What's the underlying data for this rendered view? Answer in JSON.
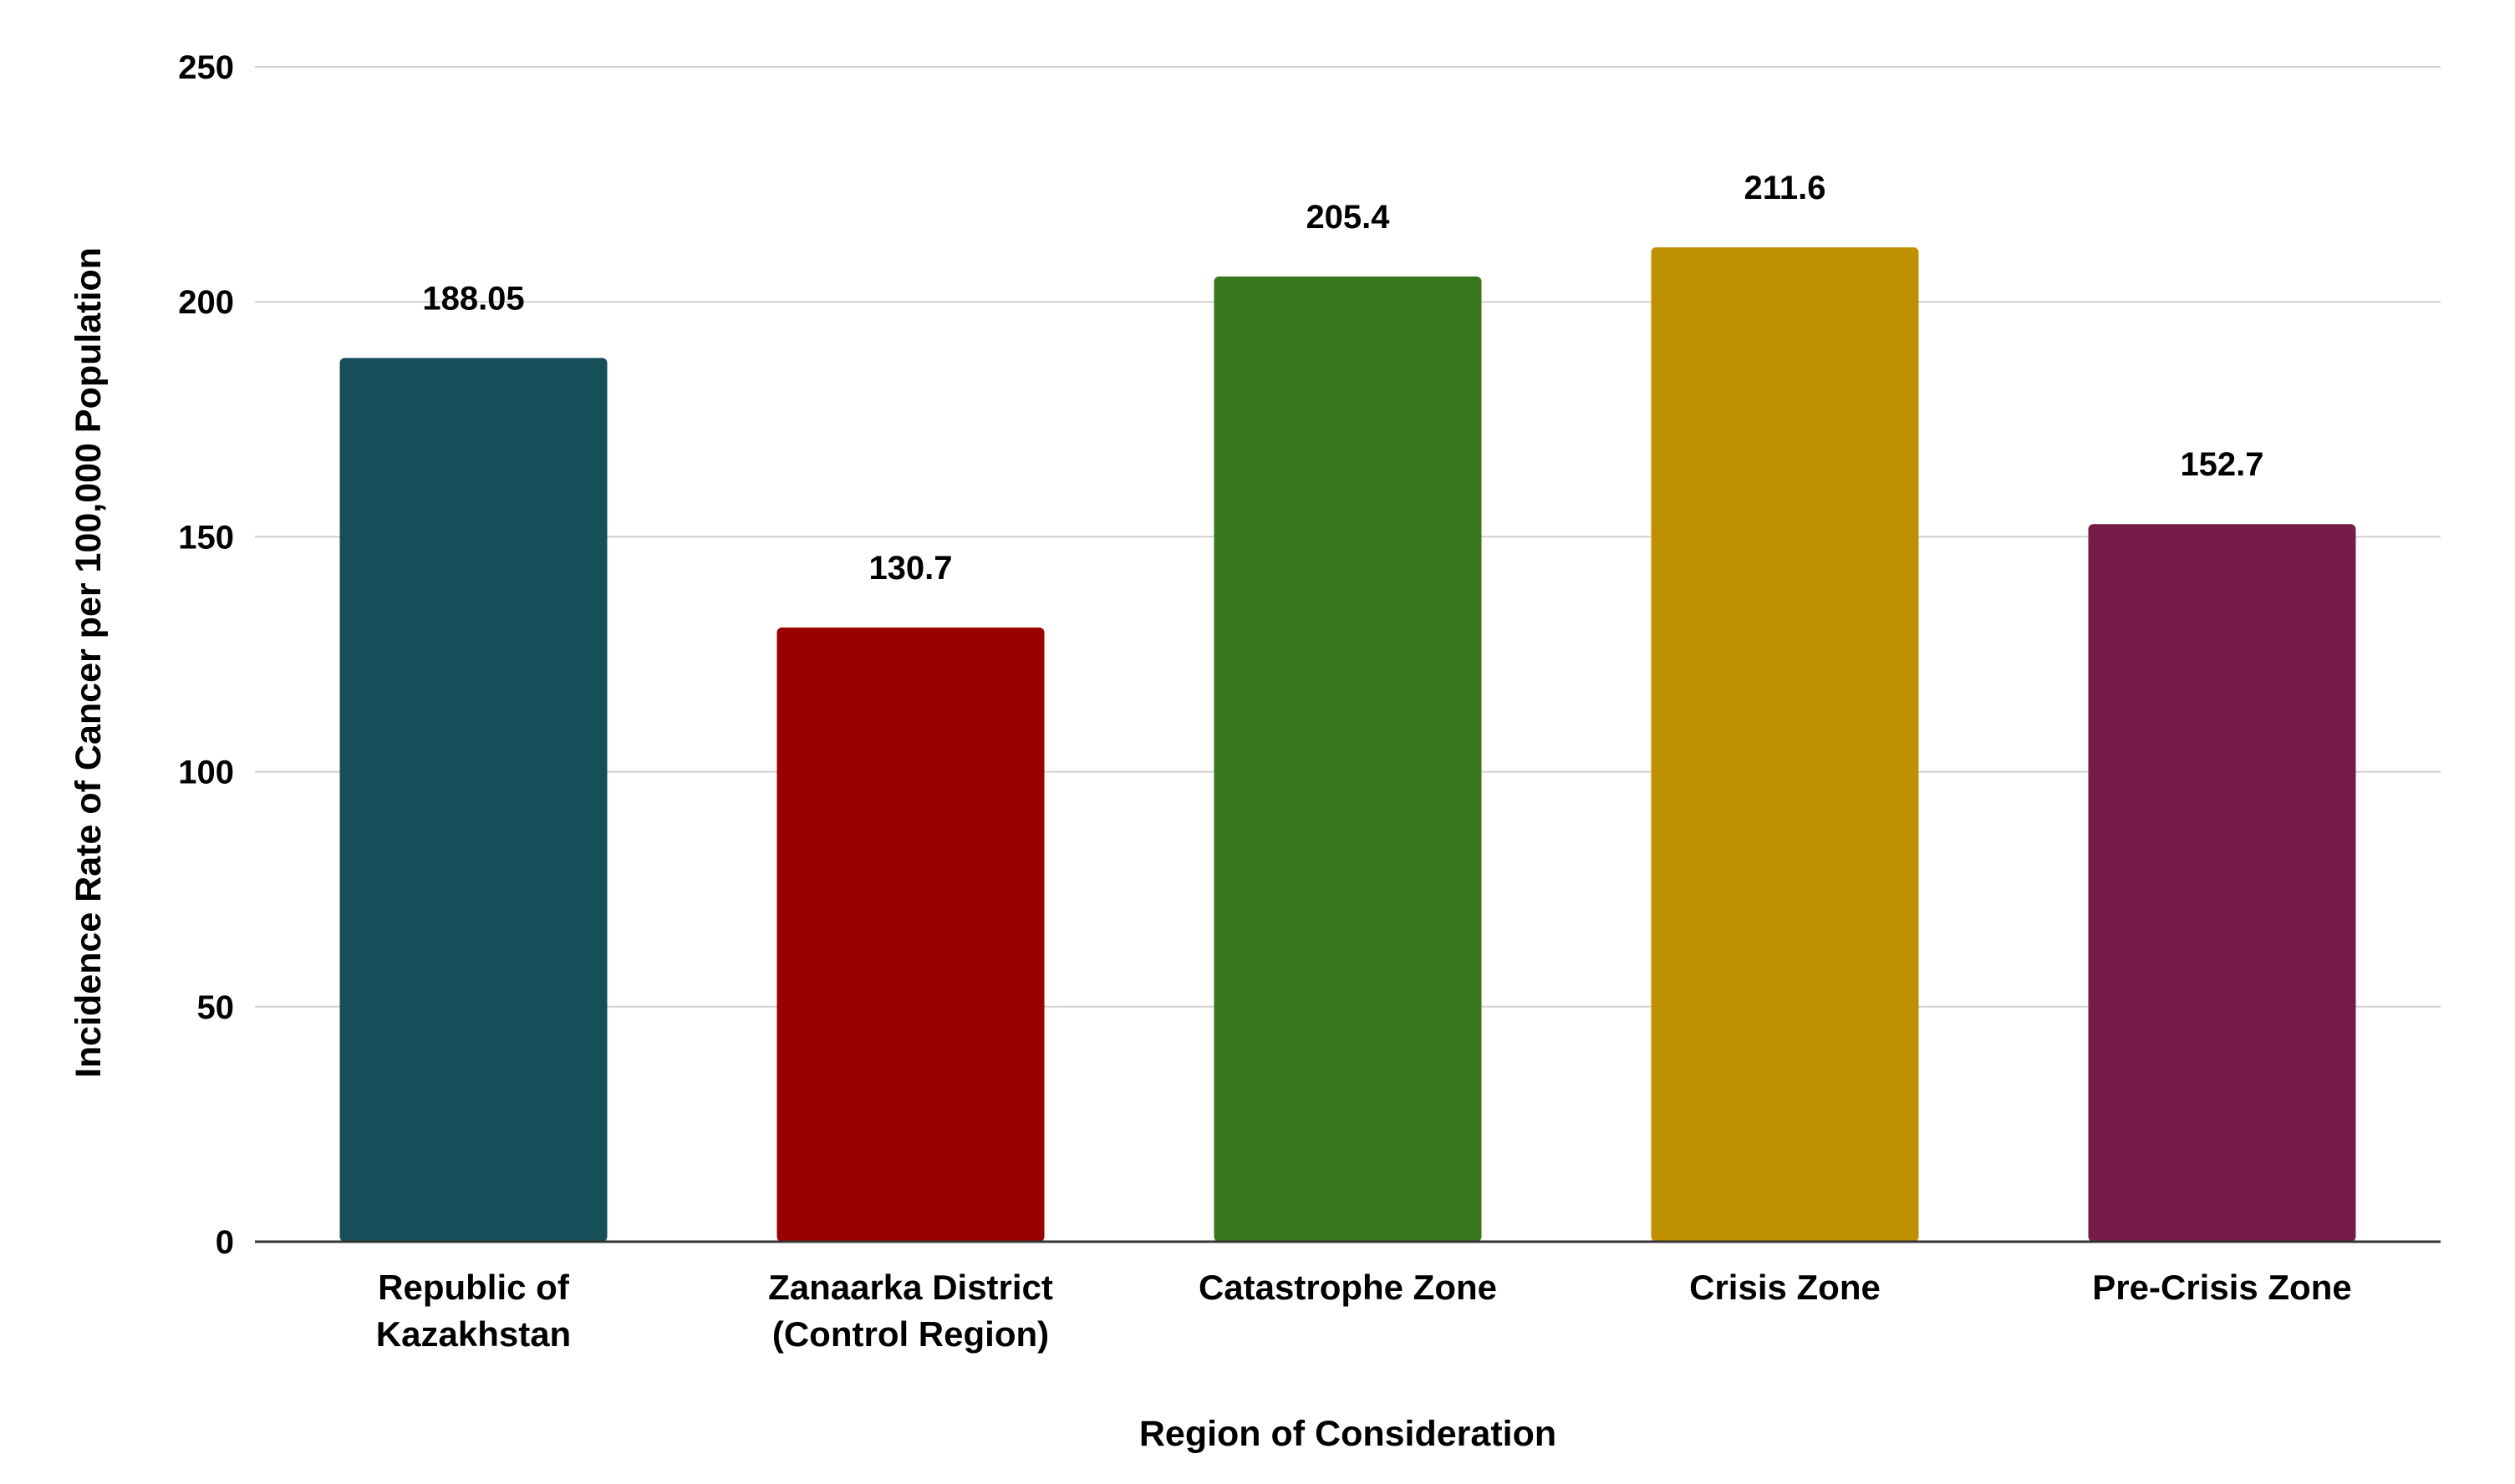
{
  "chart_data": {
    "type": "bar",
    "title": "",
    "xlabel": "Region of Consideration",
    "ylabel": "Incidence Rate of Cancer per 100,000 Population",
    "ylim": [
      0,
      250
    ],
    "yticks": [
      0,
      50,
      100,
      150,
      200,
      250
    ],
    "grid": true,
    "legend": "none",
    "categories": [
      "Republic of Kazakhstan",
      "Zanaarka District (Control Region)",
      "Catastrophe Zone",
      "Crisis Zone",
      "Pre-Crisis Zone"
    ],
    "category_lines": [
      [
        "Republic of",
        "Kazakhstan"
      ],
      [
        "Zanaarka District",
        "(Control Region)"
      ],
      [
        "Catastrophe Zone"
      ],
      [
        "Crisis Zone"
      ],
      [
        "Pre-Crisis Zone"
      ]
    ],
    "values": [
      188.05,
      130.7,
      205.4,
      211.6,
      152.7
    ],
    "value_labels": [
      "188.05",
      "130.7",
      "205.4",
      "211.6",
      "152.7"
    ],
    "colors": [
      "#164E5A",
      "#990000",
      "#38761D",
      "#BF9000",
      "#741B47"
    ],
    "grid_color": "#D0D0D0",
    "axis_color": "#333333"
  }
}
